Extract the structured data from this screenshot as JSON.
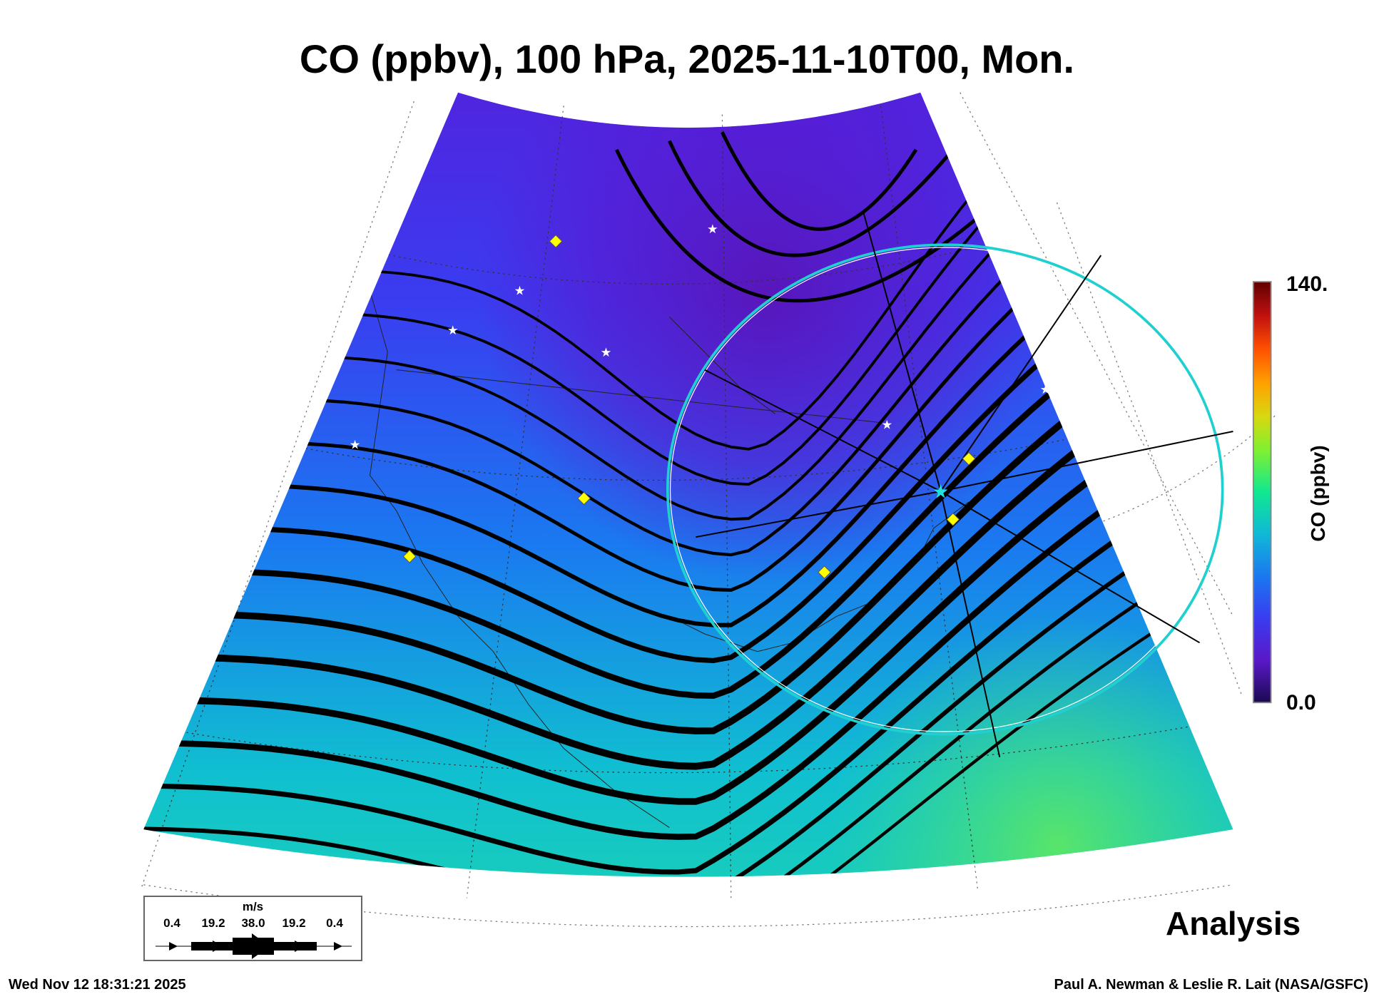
{
  "title": "CO (ppbv), 100 hPa, 2025-11-10T00, Mon.",
  "colorbar": {
    "label": "CO (ppbv)",
    "max_label": "140.",
    "min_label": "0.0",
    "min": 0,
    "max": 140,
    "colors": [
      "#1a0a50",
      "#5a18c8",
      "#3a3cf0",
      "#1a78f0",
      "#10b8d8",
      "#10e890",
      "#60f040",
      "#c8e010",
      "#ffa000",
      "#ff5000",
      "#d01010",
      "#600000"
    ]
  },
  "legend": {
    "unit": "m/s",
    "values": [
      "0.4",
      "19.2",
      "38.0",
      "19.2",
      "0.4"
    ]
  },
  "product_label": "Analysis",
  "footer": {
    "timestamp": "Wed Nov 12 18:31:21 2025",
    "credit": "Paul A. Newman & Leslie R. Lait (NASA/GSFC)"
  },
  "colors": {
    "star": "#ffffff",
    "diamond": "#ffff00",
    "circle": "#20d0d0"
  }
}
